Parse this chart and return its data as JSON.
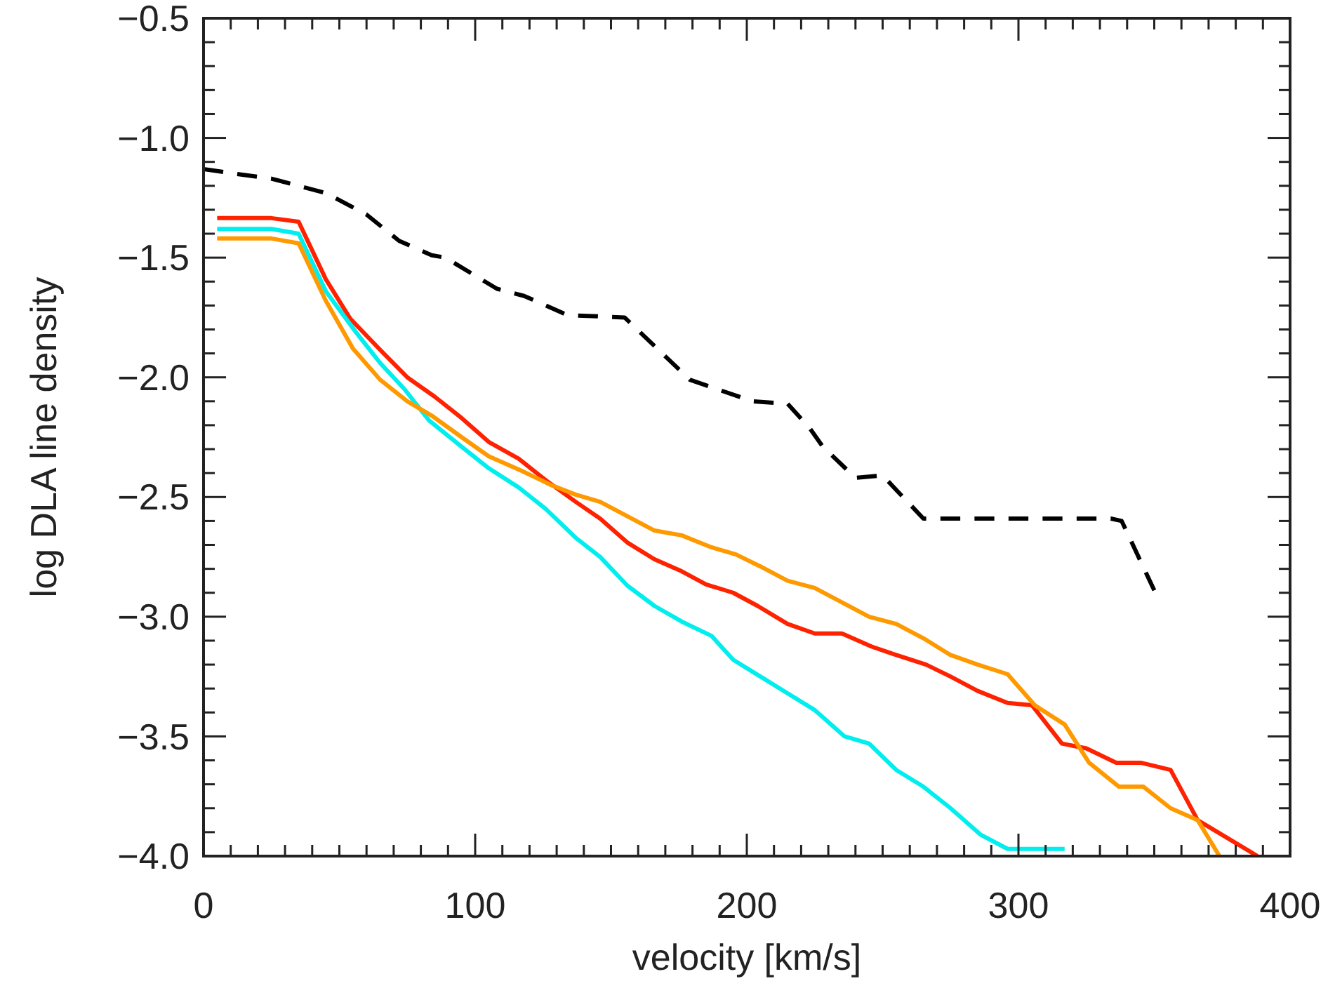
{
  "chart_data": {
    "type": "line",
    "xlabel": "velocity [km/s]",
    "ylabel": "log DLA line density",
    "xlim": [
      0,
      400
    ],
    "ylim": [
      -4.0,
      -0.5
    ],
    "xticks": [
      0,
      {
        "value": 10,
        "label": null
      },
      {
        "value": 20,
        "label": null
      },
      {
        "value": 30,
        "label": null
      },
      {
        "value": 40,
        "label": null
      },
      {
        "value": 50,
        "label": null
      },
      {
        "value": 60,
        "label": null
      },
      {
        "value": 70,
        "label": null
      },
      {
        "value": 80,
        "label": null
      },
      {
        "value": 90,
        "label": null
      },
      100,
      {
        "value": 110,
        "label": null
      },
      {
        "value": 120,
        "label": null
      },
      {
        "value": 130,
        "label": null
      },
      {
        "value": 140,
        "label": null
      },
      {
        "value": 150,
        "label": null
      },
      {
        "value": 160,
        "label": null
      },
      {
        "value": 170,
        "label": null
      },
      {
        "value": 180,
        "label": null
      },
      {
        "value": 190,
        "label": null
      },
      200,
      {
        "value": 210,
        "label": null
      },
      {
        "value": 220,
        "label": null
      },
      {
        "value": 230,
        "label": null
      },
      {
        "value": 240,
        "label": null
      },
      {
        "value": 250,
        "label": null
      },
      {
        "value": 260,
        "label": null
      },
      {
        "value": 270,
        "label": null
      },
      {
        "value": 280,
        "label": null
      },
      {
        "value": 290,
        "label": null
      },
      300,
      {
        "value": 310,
        "label": null
      },
      {
        "value": 320,
        "label": null
      },
      {
        "value": 330,
        "label": null
      },
      {
        "value": 340,
        "label": null
      },
      {
        "value": 350,
        "label": null
      },
      {
        "value": 360,
        "label": null
      },
      {
        "value": 370,
        "label": null
      },
      {
        "value": 380,
        "label": null
      },
      {
        "value": 390,
        "label": null
      },
      400
    ],
    "yticks": [
      {
        "value": -4.0,
        "label": "−4.0"
      },
      {
        "value": -3.9,
        "label": null
      },
      {
        "value": -3.8,
        "label": null
      },
      {
        "value": -3.7,
        "label": null
      },
      {
        "value": -3.6,
        "label": null
      },
      {
        "value": -3.5,
        "label": "−3.5"
      },
      {
        "value": -3.4,
        "label": null
      },
      {
        "value": -3.3,
        "label": null
      },
      {
        "value": -3.2,
        "label": null
      },
      {
        "value": -3.1,
        "label": null
      },
      {
        "value": -3.0,
        "label": "−3.0"
      },
      {
        "value": -2.9,
        "label": null
      },
      {
        "value": -2.8,
        "label": null
      },
      {
        "value": -2.7,
        "label": null
      },
      {
        "value": -2.6,
        "label": null
      },
      {
        "value": -2.5,
        "label": "−2.5"
      },
      {
        "value": -2.4,
        "label": null
      },
      {
        "value": -2.3,
        "label": null
      },
      {
        "value": -2.2,
        "label": null
      },
      {
        "value": -2.1,
        "label": null
      },
      {
        "value": -2.0,
        "label": "−2.0"
      },
      {
        "value": -1.9,
        "label": null
      },
      {
        "value": -1.8,
        "label": null
      },
      {
        "value": -1.7,
        "label": null
      },
      {
        "value": -1.6,
        "label": null
      },
      {
        "value": -1.5,
        "label": "−1.5"
      },
      {
        "value": -1.4,
        "label": null
      },
      {
        "value": -1.3,
        "label": null
      },
      {
        "value": -1.2,
        "label": null
      },
      {
        "value": -1.1,
        "label": null
      },
      {
        "value": -1.0,
        "label": "−1.0"
      },
      {
        "value": -0.9,
        "label": null
      },
      {
        "value": -0.8,
        "label": null
      },
      {
        "value": -0.7,
        "label": null
      },
      {
        "value": -0.6,
        "label": null
      },
      {
        "value": -0.5,
        "label": "−0.5"
      }
    ],
    "grid": false,
    "marker": "none",
    "series": [
      {
        "color": "#000000",
        "line_style": "dashed",
        "x": [
          0,
          12,
          25,
          45,
          60,
          72,
          84,
          89,
          108,
          118,
          134,
          155,
          179,
          202,
          215,
          223,
          228,
          240,
          250,
          265,
          334,
          338,
          350
        ],
        "values": [
          -1.13,
          -1.15,
          -1.17,
          -1.23,
          -1.32,
          -1.43,
          -1.49,
          -1.5,
          -1.63,
          -1.66,
          -1.74,
          -1.75,
          -2.01,
          -2.1,
          -2.11,
          -2.21,
          -2.29,
          -2.42,
          -2.41,
          -2.59,
          -2.59,
          -2.6,
          -2.89
        ]
      },
      {
        "color": "#ff2200",
        "line_style": "solid",
        "x": [
          5,
          25,
          35,
          45,
          54,
          65,
          75,
          85,
          95,
          105,
          116,
          126,
          137,
          146,
          156,
          166,
          176,
          185,
          195,
          204,
          215,
          225,
          235,
          246,
          255,
          266,
          275,
          285,
          296,
          305,
          316,
          325,
          336,
          345,
          356,
          366,
          388
        ],
        "values": [
          -1.335,
          -1.335,
          -1.35,
          -1.59,
          -1.755,
          -1.885,
          -2.0,
          -2.08,
          -2.17,
          -2.27,
          -2.34,
          -2.43,
          -2.52,
          -2.59,
          -2.69,
          -2.76,
          -2.81,
          -2.865,
          -2.9,
          -2.955,
          -3.03,
          -3.07,
          -3.07,
          -3.125,
          -3.16,
          -3.2,
          -3.25,
          -3.31,
          -3.36,
          -3.37,
          -3.53,
          -3.55,
          -3.61,
          -3.61,
          -3.64,
          -3.85,
          -4.0
        ]
      },
      {
        "color": "#00eeee",
        "line_style": "solid",
        "x": [
          5,
          25,
          35,
          45,
          56,
          65,
          74,
          83,
          95,
          105,
          116,
          126,
          137,
          146,
          156,
          166,
          176,
          187,
          195,
          205,
          215,
          225,
          236,
          245,
          255,
          265,
          275,
          286,
          296,
          317
        ],
        "values": [
          -1.38,
          -1.38,
          -1.4,
          -1.64,
          -1.81,
          -1.94,
          -2.05,
          -2.18,
          -2.29,
          -2.38,
          -2.46,
          -2.55,
          -2.67,
          -2.75,
          -2.87,
          -2.955,
          -3.02,
          -3.08,
          -3.18,
          -3.25,
          -3.32,
          -3.39,
          -3.5,
          -3.53,
          -3.64,
          -3.71,
          -3.8,
          -3.91,
          -3.97,
          -3.97
        ]
      },
      {
        "color": "#ff9900",
        "line_style": "solid",
        "x": [
          5,
          25,
          35,
          45,
          55,
          65,
          75,
          84,
          95,
          105,
          117,
          128,
          137,
          146,
          156,
          166,
          176,
          187,
          196,
          205,
          215,
          225,
          235,
          245,
          255,
          265,
          275,
          285,
          296,
          306,
          317,
          326,
          337,
          346,
          356,
          366,
          374
        ],
        "values": [
          -1.42,
          -1.42,
          -1.44,
          -1.68,
          -1.88,
          -2.01,
          -2.1,
          -2.16,
          -2.25,
          -2.33,
          -2.39,
          -2.45,
          -2.49,
          -2.52,
          -2.58,
          -2.64,
          -2.66,
          -2.71,
          -2.74,
          -2.79,
          -2.85,
          -2.88,
          -2.94,
          -3.0,
          -3.03,
          -3.09,
          -3.16,
          -3.2,
          -3.24,
          -3.37,
          -3.45,
          -3.61,
          -3.71,
          -3.71,
          -3.8,
          -3.85,
          -4.0
        ]
      }
    ]
  }
}
